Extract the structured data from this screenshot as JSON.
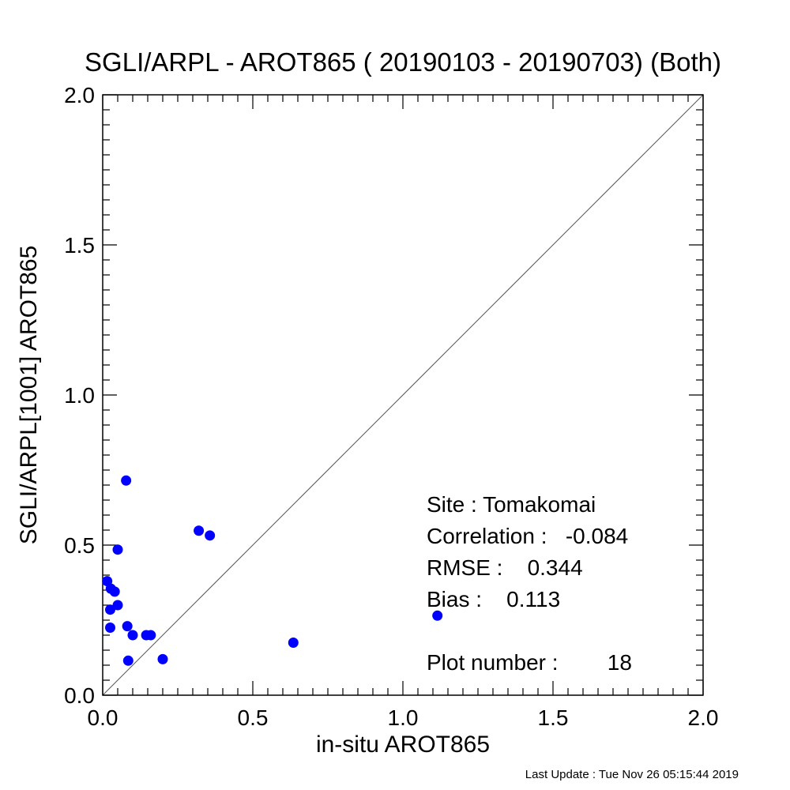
{
  "chart_data": {
    "type": "scatter",
    "title": "SGLI/ARPL - AROT865 ( 20190103 - 20190703) (Both)",
    "xlabel": "in-situ AROT865",
    "ylabel": "SGLI/ARPL[1001]    AROT865",
    "xlim": [
      0.0,
      2.0
    ],
    "ylim": [
      0.0,
      2.0
    ],
    "x_ticks": [
      "0.0",
      "0.5",
      "1.0",
      "1.5",
      "2.0"
    ],
    "y_ticks": [
      "0.0",
      "0.5",
      "1.0",
      "1.5",
      "2.0"
    ],
    "grid": false,
    "reference_line": "1:1",
    "marker_color": "#0000ff",
    "series": [
      {
        "points": [
          {
            "x": 0.015,
            "y": 0.38
          },
          {
            "x": 0.027,
            "y": 0.355
          },
          {
            "x": 0.04,
            "y": 0.345
          },
          {
            "x": 0.025,
            "y": 0.285
          },
          {
            "x": 0.05,
            "y": 0.3
          },
          {
            "x": 0.025,
            "y": 0.225
          },
          {
            "x": 0.05,
            "y": 0.485
          },
          {
            "x": 0.078,
            "y": 0.715
          },
          {
            "x": 0.082,
            "y": 0.23
          },
          {
            "x": 0.1,
            "y": 0.2
          },
          {
            "x": 0.085,
            "y": 0.115
          },
          {
            "x": 0.145,
            "y": 0.2
          },
          {
            "x": 0.16,
            "y": 0.2
          },
          {
            "x": 0.2,
            "y": 0.12
          },
          {
            "x": 0.32,
            "y": 0.548
          },
          {
            "x": 0.357,
            "y": 0.532
          },
          {
            "x": 0.635,
            "y": 0.175
          },
          {
            "x": 1.115,
            "y": 0.265
          }
        ]
      }
    ],
    "annotations": {
      "site": "Site : Tomakomai",
      "correlation": "Correlation :   -0.084",
      "rmse": "RMSE :    0.344",
      "bias": "Bias :    0.113",
      "plot_number": "Plot number :        18"
    }
  },
  "footer": "Last Update : Tue Nov 26 05:15:44 2019"
}
